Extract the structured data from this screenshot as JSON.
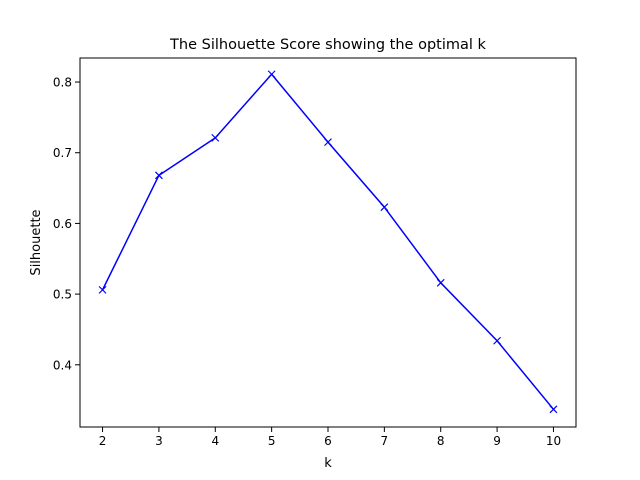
{
  "chart_data": {
    "type": "line",
    "title": "The Silhouette Score showing the optimal k",
    "xlabel": "k",
    "ylabel": "Silhouette",
    "xlim": [
      1.6,
      10.4
    ],
    "ylim": [
      0.312,
      0.834
    ],
    "x_ticks": [
      2,
      3,
      4,
      5,
      6,
      7,
      8,
      9,
      10
    ],
    "y_ticks": [
      0.4,
      0.5,
      0.6,
      0.7,
      0.8
    ],
    "grid": false,
    "series": [
      {
        "x": [
          2,
          3,
          4,
          5,
          6,
          7,
          8,
          9,
          10
        ],
        "values": [
          0.506,
          0.668,
          0.721,
          0.811,
          0.715,
          0.623,
          0.516,
          0.434,
          0.337
        ],
        "color": "#0000ff",
        "marker": "x"
      }
    ]
  }
}
